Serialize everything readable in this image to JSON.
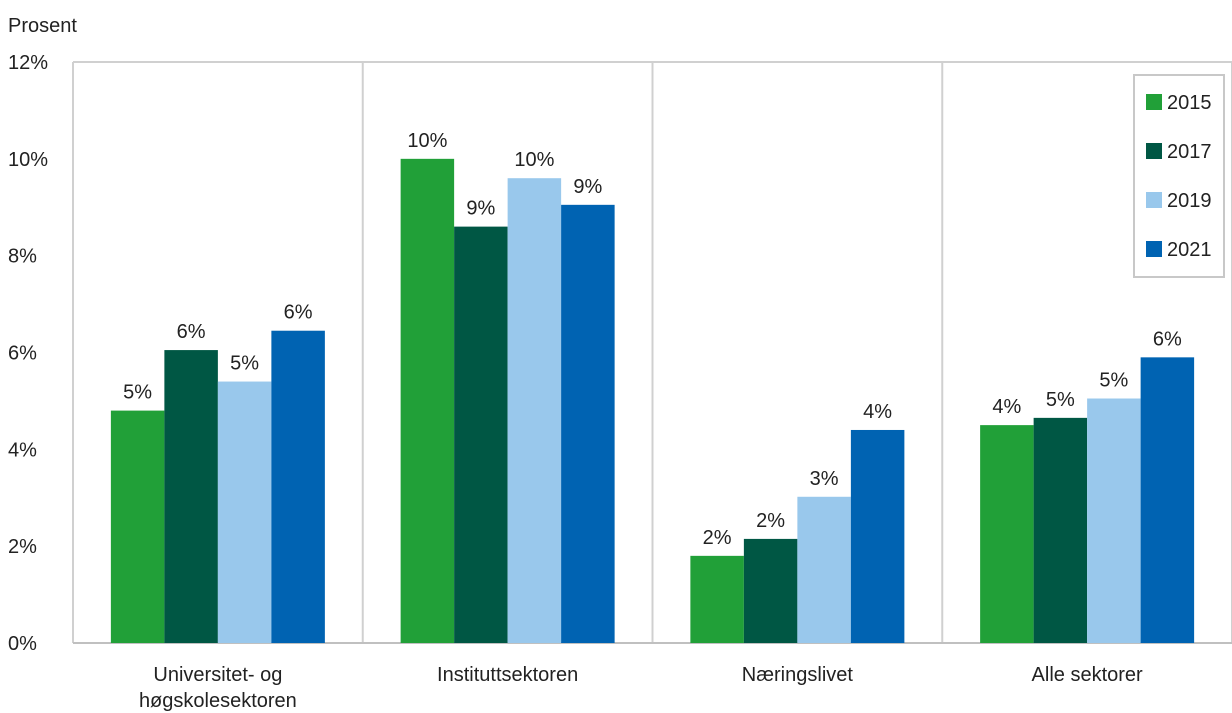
{
  "chart_data": {
    "type": "bar",
    "ylabel": "Prosent",
    "ylim": [
      0,
      12
    ],
    "ytick_step": 2,
    "ytick_suffix": "%",
    "grid": "vertical separators between categories",
    "legend_position": "top-right",
    "categories": [
      [
        "Universitet- og",
        "høgskolesektoren"
      ],
      [
        "Instituttsektoren"
      ],
      [
        "Næringslivet"
      ],
      [
        "Alle sektorer"
      ]
    ],
    "series": [
      {
        "name": "2015",
        "color": "#21a038",
        "values": [
          4.8,
          10.0,
          1.8,
          4.5
        ],
        "labels": [
          "5%",
          "10%",
          "2%",
          "4%"
        ]
      },
      {
        "name": "2017",
        "color": "#005744",
        "values": [
          6.05,
          8.6,
          2.15,
          4.65
        ],
        "labels": [
          "6%",
          "9%",
          "2%",
          "5%"
        ]
      },
      {
        "name": "2019",
        "color": "#99c8ec",
        "values": [
          5.4,
          9.6,
          3.02,
          5.05
        ],
        "labels": [
          "5%",
          "10%",
          "3%",
          "5%"
        ]
      },
      {
        "name": "2021",
        "color": "#0063b2",
        "values": [
          6.45,
          9.05,
          4.4,
          5.9
        ],
        "labels": [
          "6%",
          "9%",
          "4%",
          "6%"
        ]
      }
    ]
  }
}
